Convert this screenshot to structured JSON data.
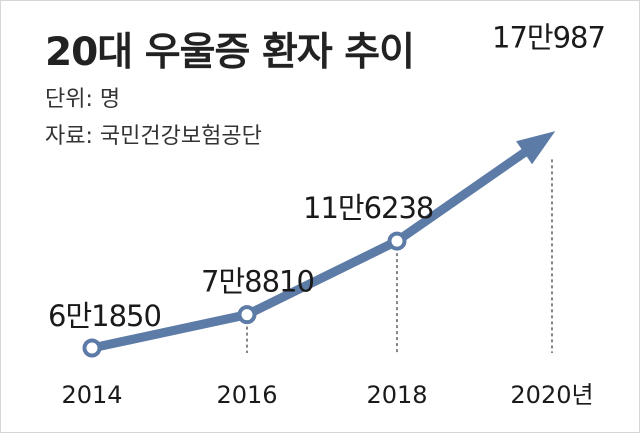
{
  "colors": {
    "line": "#5c7ba6",
    "marker_fill": "#ffffff",
    "drop_line": "#444444",
    "text": "#1a1a1a"
  },
  "chart_data": {
    "type": "line",
    "title": "20대 우울증 환자 추이",
    "unit_label": "단위: 명",
    "source_label": "자료: 국민건강보험공단",
    "x_labels": [
      "2014",
      "2016",
      "2018",
      "2020년"
    ],
    "x": [
      2014,
      2016,
      2018,
      2020
    ],
    "values": [
      61850,
      78810,
      116238,
      170987
    ],
    "value_labels": [
      "6만1850",
      "7만8810",
      "11만6238",
      "17만987"
    ],
    "ylim": [
      40000,
      190000
    ],
    "grid": false,
    "end_arrow": true
  }
}
